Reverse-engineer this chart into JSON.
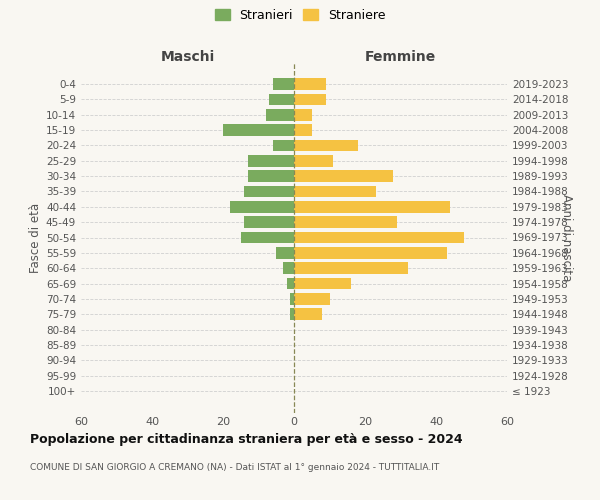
{
  "age_groups": [
    "100+",
    "95-99",
    "90-94",
    "85-89",
    "80-84",
    "75-79",
    "70-74",
    "65-69",
    "60-64",
    "55-59",
    "50-54",
    "45-49",
    "40-44",
    "35-39",
    "30-34",
    "25-29",
    "20-24",
    "15-19",
    "10-14",
    "5-9",
    "0-4"
  ],
  "birth_years": [
    "≤ 1923",
    "1924-1928",
    "1929-1933",
    "1934-1938",
    "1939-1943",
    "1944-1948",
    "1949-1953",
    "1954-1958",
    "1959-1963",
    "1964-1968",
    "1969-1973",
    "1974-1978",
    "1979-1983",
    "1984-1988",
    "1989-1993",
    "1994-1998",
    "1999-2003",
    "2004-2008",
    "2009-2013",
    "2014-2018",
    "2019-2023"
  ],
  "maschi": [
    0,
    0,
    0,
    0,
    0,
    1,
    1,
    2,
    3,
    5,
    15,
    14,
    18,
    14,
    13,
    13,
    6,
    20,
    8,
    7,
    6
  ],
  "femmine": [
    0,
    0,
    0,
    0,
    0,
    8,
    10,
    16,
    32,
    43,
    48,
    29,
    44,
    23,
    28,
    11,
    18,
    5,
    5,
    9,
    9
  ],
  "color_maschi": "#7aab5e",
  "color_femmine": "#f5c242",
  "xlim": 60,
  "title": "Popolazione per cittadinanza straniera per età e sesso - 2024",
  "subtitle": "COMUNE DI SAN GIORGIO A CREMANO (NA) - Dati ISTAT al 1° gennaio 2024 - TUTTITALIA.IT",
  "ylabel_left": "Fasce di età",
  "ylabel_right": "Anni di nascita",
  "xlabel_left": "Maschi",
  "xlabel_right": "Femmine",
  "legend_maschi": "Stranieri",
  "legend_femmine": "Straniere",
  "bg_color": "#f9f7f2",
  "grid_color": "#d0d0d0"
}
